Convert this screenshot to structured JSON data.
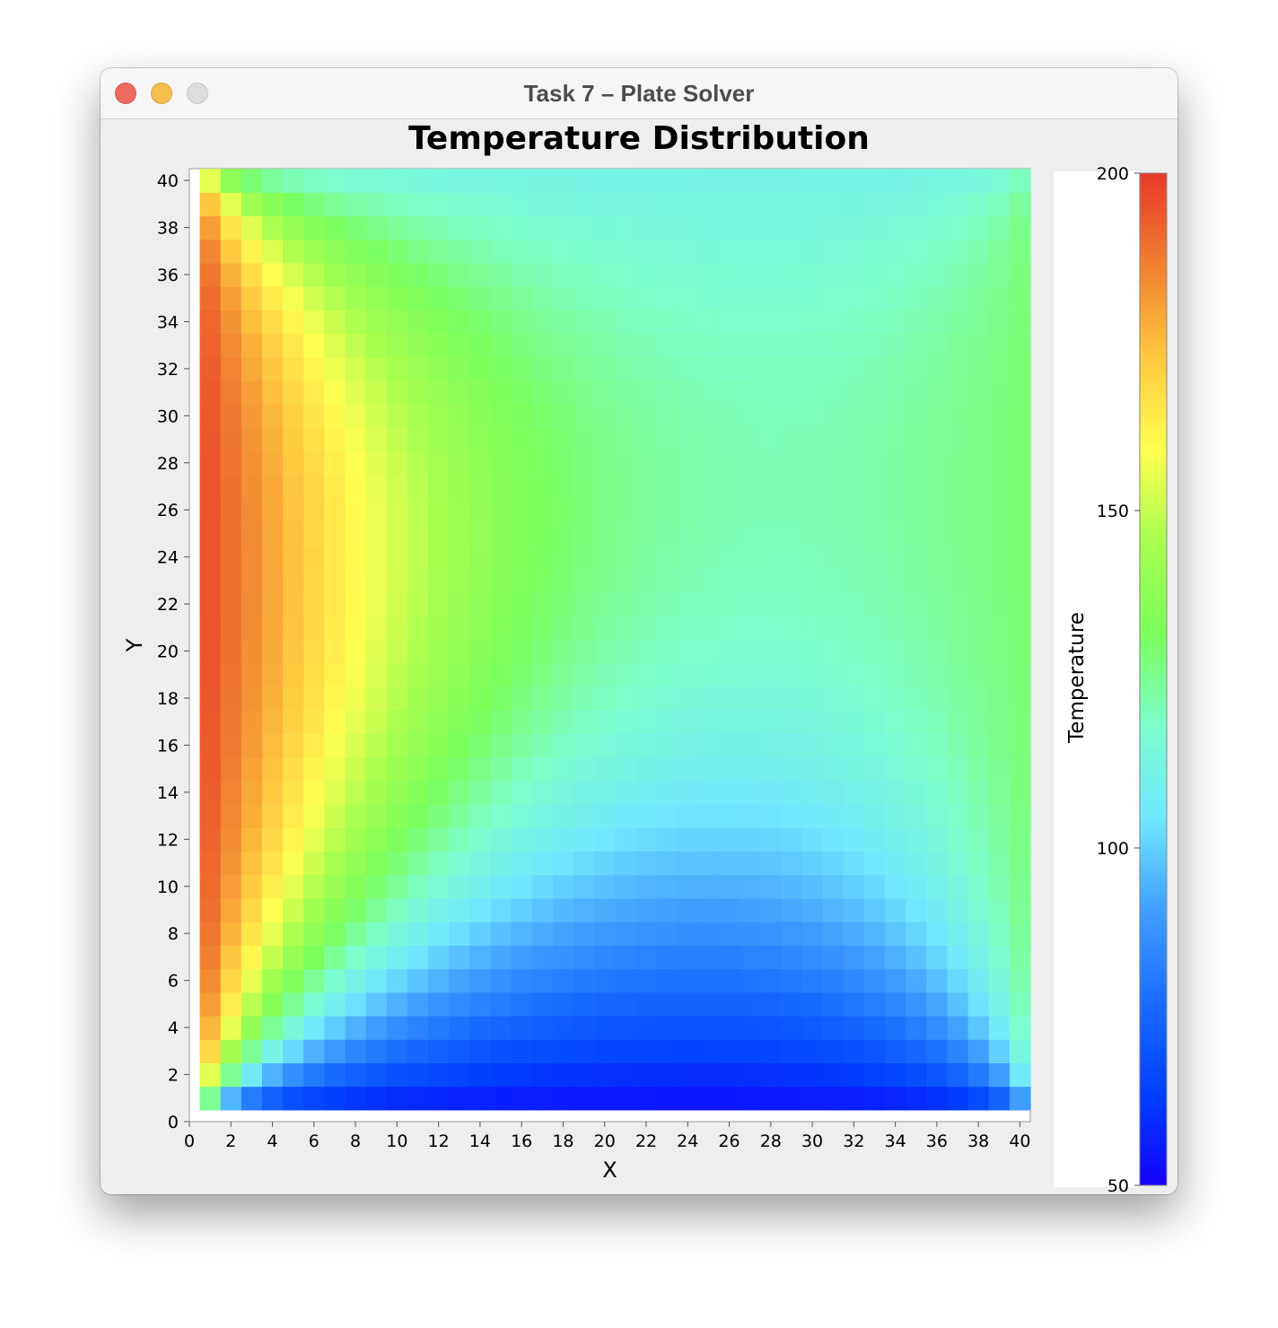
{
  "window": {
    "title": "Task 7 – Plate Solver"
  },
  "traffic_lights": {
    "close": "#ec6a5e",
    "minimize": "#f4bf4f",
    "zoom": "#dddddd"
  },
  "chart_data": {
    "type": "heatmap",
    "title": "Temperature Distribution",
    "xlabel": "X",
    "ylabel": "Y",
    "xlim": [
      0,
      40.5
    ],
    "ylim": [
      0,
      40.5
    ],
    "x_ticks": [
      "0",
      "2",
      "4",
      "6",
      "8",
      "10",
      "12",
      "14",
      "16",
      "18",
      "20",
      "22",
      "24",
      "26",
      "28",
      "30",
      "32",
      "34",
      "36",
      "38",
      "40"
    ],
    "y_ticks": [
      "0",
      "2",
      "4",
      "6",
      "8",
      "10",
      "12",
      "14",
      "16",
      "18",
      "20",
      "22",
      "24",
      "26",
      "28",
      "30",
      "32",
      "34",
      "36",
      "38",
      "40"
    ],
    "grid": false,
    "grid_x_range": [
      1,
      40
    ],
    "grid_y_range": [
      1,
      40
    ],
    "boundary_conditions": {
      "left_edge_temperature": 200,
      "bottom_edge_temperature": 50,
      "right_edge_temperature": 130,
      "top_edge_temperature": 110
    },
    "colorbar": {
      "label": "Temperature",
      "min": 50,
      "max": 200,
      "ticks": [
        "50",
        "100",
        "150",
        "200"
      ],
      "colormap": "rainbow",
      "stops": [
        "#1400ff",
        "#0040ff",
        "#1a6cff",
        "#40a0ff",
        "#70e8ff",
        "#7cffcc",
        "#7cff5c",
        "#a8ff50",
        "#ffff50",
        "#ffc840",
        "#f08030",
        "#e8382a"
      ]
    },
    "corner_samples": [
      {
        "x": 1,
        "y": 1,
        "value": 140
      },
      {
        "x": 1,
        "y": 40,
        "value": 145
      },
      {
        "x": 40,
        "y": 1,
        "value": 105
      },
      {
        "x": 40,
        "y": 40,
        "value": 130
      },
      {
        "x": 20,
        "y": 1,
        "value": 55
      },
      {
        "x": 20,
        "y": 20,
        "value": 130
      },
      {
        "x": 1,
        "y": 20,
        "value": 195
      }
    ]
  }
}
